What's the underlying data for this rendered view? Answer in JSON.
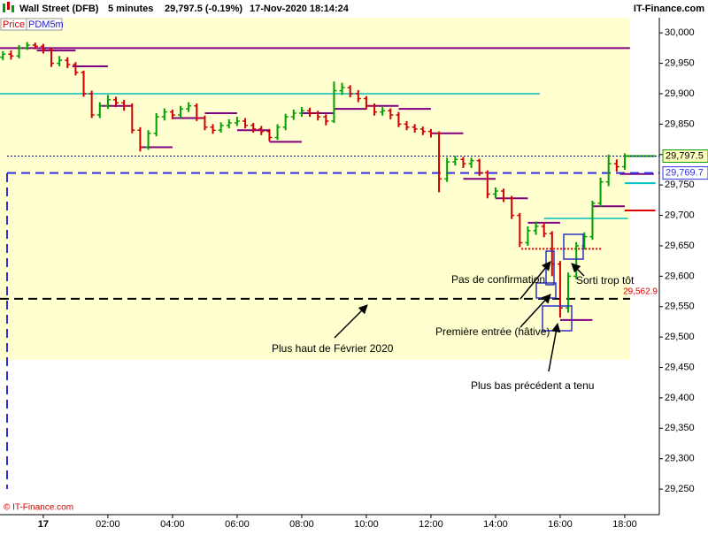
{
  "header": {
    "title": "Wall Street (DFB)",
    "timeframe": "5 minutes",
    "price": "29,797.5 (-0.19%)",
    "timestamp": "17-Nov-2020 18:14:24",
    "brand": "IT-Finance.com"
  },
  "legend": {
    "price": "Price",
    "indicator": "PDM5m"
  },
  "copyright": "© IT-Finance.com",
  "chart_data": {
    "type": "candlestick",
    "up_color": "#00a000",
    "down_color": "#d00000",
    "xlim": [
      -1.34,
      19.07
    ],
    "ylim": [
      29208,
      30025
    ],
    "xticks": [
      {
        "value": 0,
        "label": "17"
      },
      {
        "value": 2,
        "label": "02:00"
      },
      {
        "value": 4,
        "label": "04:00"
      },
      {
        "value": 6,
        "label": "06:00"
      },
      {
        "value": 8,
        "label": "08:00"
      },
      {
        "value": 10,
        "label": "10:00"
      },
      {
        "value": 12,
        "label": "12:00"
      },
      {
        "value": 14,
        "label": "14:00"
      },
      {
        "value": 16,
        "label": "16:00"
      },
      {
        "value": 18,
        "label": "18:00"
      }
    ],
    "yticks": [
      {
        "value": 30000,
        "label": "30,000"
      },
      {
        "value": 29950,
        "label": "29,950"
      },
      {
        "value": 29900,
        "label": "29,900"
      },
      {
        "value": 29850,
        "label": "29,850"
      },
      {
        "value": 29800,
        "label": "29,800"
      },
      {
        "value": 29750,
        "label": "29,750"
      },
      {
        "value": 29700,
        "label": "29,700"
      },
      {
        "value": 29650,
        "label": "29,650"
      },
      {
        "value": 29600,
        "label": "29,600"
      },
      {
        "value": 29550,
        "label": "29,550"
      },
      {
        "value": 29500,
        "label": "29,500"
      },
      {
        "value": 29450,
        "label": "29,450"
      },
      {
        "value": 29400,
        "label": "29,400"
      },
      {
        "value": 29350,
        "label": "29,350"
      },
      {
        "value": 29300,
        "label": "29,300"
      },
      {
        "value": 29250,
        "label": "29,250"
      }
    ],
    "x": [
      -1.25,
      -1,
      -0.75,
      -0.5,
      -0.25,
      0,
      0.25,
      0.5,
      0.75,
      1,
      1.25,
      1.5,
      1.75,
      2,
      2.25,
      2.5,
      2.75,
      3,
      3.25,
      3.5,
      3.75,
      4,
      4.25,
      4.5,
      4.75,
      5,
      5.25,
      5.5,
      5.75,
      6,
      6.25,
      6.5,
      6.75,
      7,
      7.25,
      7.5,
      7.75,
      8,
      8.25,
      8.5,
      8.75,
      9,
      9.25,
      9.5,
      9.75,
      10,
      10.25,
      10.5,
      10.75,
      11,
      11.25,
      11.5,
      11.75,
      12,
      12.25,
      12.5,
      12.75,
      13,
      13.25,
      13.5,
      13.75,
      14,
      14.25,
      14.5,
      14.75,
      15,
      15.25,
      15.5,
      15.75,
      16,
      16.25,
      16.5,
      16.75,
      17,
      17.25,
      17.5,
      17.75,
      18
    ],
    "open": [
      29960,
      29965,
      29962,
      29975,
      29980,
      29978,
      29972,
      29950,
      29955,
      29948,
      29935,
      29900,
      29865,
      29880,
      29890,
      29885,
      29880,
      29840,
      29812,
      29835,
      29862,
      29870,
      29865,
      29875,
      29880,
      29860,
      29845,
      29840,
      29848,
      29852,
      29855,
      29848,
      29842,
      29838,
      29828,
      29845,
      29862,
      29868,
      29872,
      29868,
      29862,
      29855,
      29905,
      29910,
      29900,
      29892,
      29880,
      29870,
      29872,
      29865,
      29850,
      29845,
      29842,
      29838,
      29835,
      29760,
      29788,
      29792,
      29785,
      29790,
      29770,
      29735,
      29740,
      29728,
      29700,
      29655,
      29675,
      29682,
      29670,
      29620,
      29548,
      29600,
      29650,
      29665,
      29720,
      29755,
      29785,
      29780
    ],
    "high": [
      29970,
      29971,
      29980,
      29985,
      29984,
      29982,
      29975,
      29962,
      29960,
      29952,
      29938,
      29905,
      29886,
      29898,
      29895,
      29890,
      29884,
      29845,
      29840,
      29868,
      29876,
      29874,
      29880,
      29886,
      29884,
      29864,
      29850,
      29853,
      29858,
      29862,
      29860,
      29852,
      29847,
      29842,
      29850,
      29867,
      29874,
      29878,
      29877,
      29872,
      29866,
      29920,
      29918,
      29914,
      29906,
      29896,
      29884,
      29878,
      29876,
      29870,
      29855,
      29850,
      29846,
      29842,
      29838,
      29795,
      29798,
      29796,
      29795,
      29793,
      29774,
      29746,
      29744,
      29732,
      29704,
      29682,
      29690,
      29688,
      29674,
      29625,
      29606,
      29656,
      29672,
      29724,
      29762,
      29800,
      29792,
      29802
    ],
    "low": [
      29955,
      29956,
      29958,
      29972,
      29973,
      29966,
      29944,
      29945,
      29942,
      29930,
      29895,
      29860,
      29860,
      29875,
      29878,
      29872,
      29835,
      29805,
      29808,
      29830,
      29856,
      29858,
      29860,
      29870,
      29855,
      29840,
      29834,
      29836,
      29843,
      29847,
      29843,
      29836,
      29832,
      29822,
      29824,
      29840,
      29857,
      29862,
      29862,
      29856,
      29848,
      29852,
      29898,
      29894,
      29886,
      29874,
      29864,
      29864,
      29858,
      29845,
      29840,
      29836,
      29832,
      29828,
      29738,
      29755,
      29782,
      29778,
      29778,
      29765,
      29728,
      29728,
      29722,
      29694,
      29648,
      29650,
      29668,
      29664,
      29600,
      29532,
      29540,
      29595,
      29644,
      29660,
      29714,
      29748,
      29772,
      29775
    ],
    "close": [
      29965,
      29962,
      29975,
      29980,
      29978,
      29972,
      29950,
      29955,
      29948,
      29935,
      29900,
      29865,
      29880,
      29890,
      29885,
      29880,
      29840,
      29812,
      29835,
      29862,
      29870,
      29865,
      29875,
      29880,
      29860,
      29845,
      29840,
      29848,
      29852,
      29855,
      29848,
      29842,
      29838,
      29828,
      29845,
      29862,
      29868,
      29872,
      29868,
      29862,
      29855,
      29905,
      29910,
      29900,
      29892,
      29880,
      29870,
      29872,
      29865,
      29850,
      29845,
      29842,
      29838,
      29835,
      29760,
      29788,
      29792,
      29785,
      29790,
      29770,
      29735,
      29740,
      29728,
      29700,
      29655,
      29675,
      29682,
      29670,
      29620,
      29548,
      29600,
      29650,
      29665,
      29720,
      29755,
      29785,
      29780,
      29797.5
    ],
    "levels": [
      {
        "start": -1.34,
        "end": 18.16,
        "value": 29975,
        "color": "#800080"
      },
      {
        "start": -1.34,
        "end": 15.37,
        "value": 29900,
        "color": "#40d0c0"
      },
      {
        "start": 15.5,
        "end": 18.1,
        "value": 29695,
        "color": "#40d0c0"
      },
      {
        "start": -0.2,
        "end": 1.0,
        "value": 29971,
        "color": "#800080"
      },
      {
        "start": 0.9,
        "end": 2.0,
        "value": 29945,
        "color": "#800080"
      },
      {
        "start": 1.75,
        "end": 2.75,
        "value": 29880,
        "color": "#800080"
      },
      {
        "start": 3.0,
        "end": 4.0,
        "value": 29812,
        "color": "#800080"
      },
      {
        "start": 4.0,
        "end": 5.0,
        "value": 29860,
        "color": "#800080"
      },
      {
        "start": 5.0,
        "end": 6.0,
        "value": 29868,
        "color": "#800080"
      },
      {
        "start": 6.0,
        "end": 7.0,
        "value": 29840,
        "color": "#800080"
      },
      {
        "start": 7.0,
        "end": 8.0,
        "value": 29821,
        "color": "#800080"
      },
      {
        "start": 8.0,
        "end": 9.0,
        "value": 29868,
        "color": "#800080"
      },
      {
        "start": 9.0,
        "end": 10.0,
        "value": 29875,
        "color": "#800080"
      },
      {
        "start": 10.0,
        "end": 11.0,
        "value": 29880,
        "color": "#800080"
      },
      {
        "start": 11.0,
        "end": 12.0,
        "value": 29875,
        "color": "#800080"
      },
      {
        "start": 12.0,
        "end": 13.0,
        "value": 29835,
        "color": "#800080"
      },
      {
        "start": 13.0,
        "end": 14.0,
        "value": 29760,
        "color": "#800080"
      },
      {
        "start": 14.0,
        "end": 15.0,
        "value": 29728,
        "color": "#800080"
      },
      {
        "start": 15.0,
        "end": 16.0,
        "value": 29688,
        "color": "#800080"
      },
      {
        "start": 16.0,
        "end": 17.0,
        "value": 29528,
        "color": "#800080"
      },
      {
        "start": 17.0,
        "end": 18.0,
        "value": 29715,
        "color": "#800080"
      },
      {
        "start": 14.8,
        "end": 17.3,
        "value": 29645,
        "color": "#e00000",
        "dash": "dotted"
      },
      {
        "start": 18.0,
        "end": 18.95,
        "value": 29797.5,
        "color": "#00a000"
      },
      {
        "start": 17.85,
        "end": 18.9,
        "value": 29768,
        "color": "#800080"
      },
      {
        "start": 18.0,
        "end": 18.95,
        "value": 29753,
        "color": "#00c0c0"
      },
      {
        "start": 18.0,
        "end": 18.95,
        "value": 29708,
        "color": "#e00000"
      }
    ],
    "price_lines": [
      {
        "value": 29797.5,
        "label": "29,797.5",
        "color": "#000080",
        "dash": "dotted",
        "label_color": "#000000",
        "box": "#00a000"
      },
      {
        "value": 29769.7,
        "label": "29,769.7",
        "color": "#3030e0",
        "dash": "dashed",
        "label_color": "#3030e0",
        "box": "#3030e0"
      },
      {
        "value": 29562.9,
        "label": "29,562.9",
        "color": "#000000",
        "dash": "dashed",
        "label_color": "#e00000"
      }
    ],
    "annotations": [
      "Pas de confirmation",
      "Sorti trop tôt",
      "Première entrée (hâtive)",
      "Plus haut de Février 2020",
      "Plus bas précédent a tenu"
    ]
  }
}
